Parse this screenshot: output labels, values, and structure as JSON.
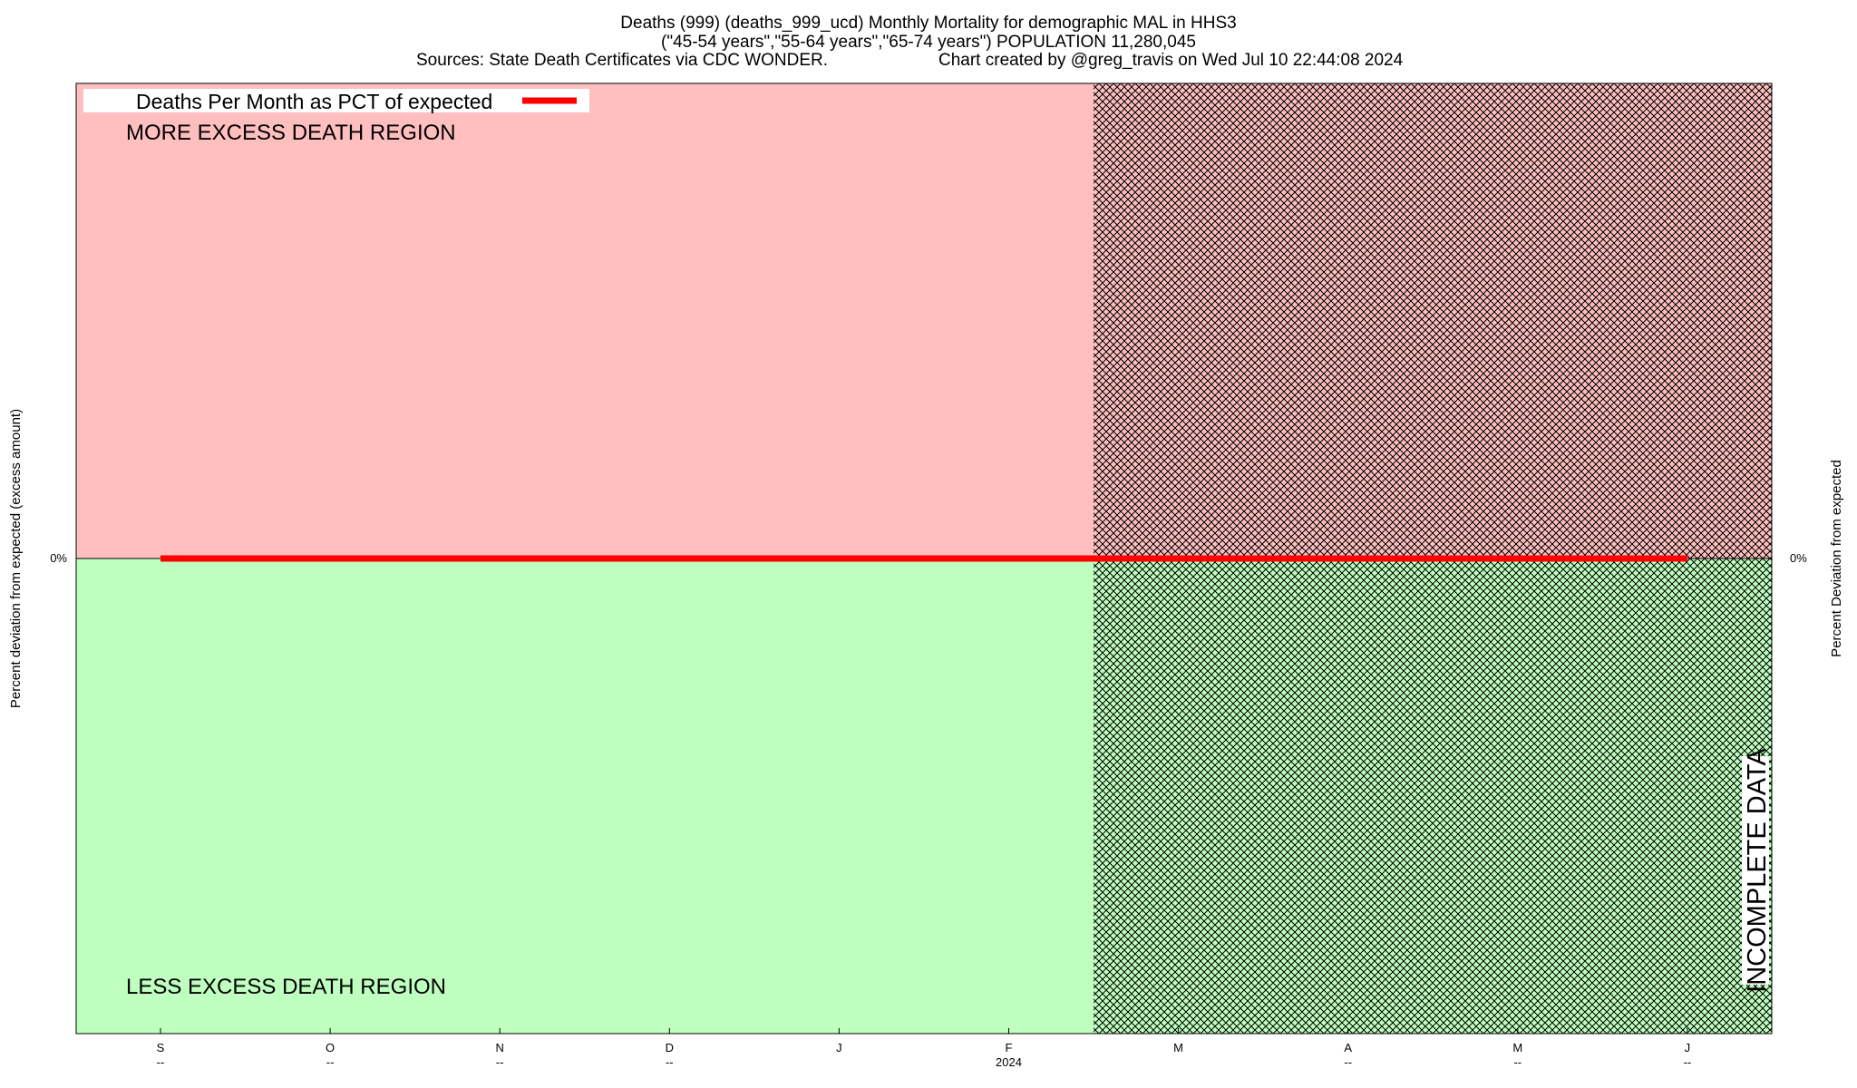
{
  "chart_data": {
    "type": "line",
    "title": "Deaths (999) (deaths_999_ucd) Monthly Mortality for demographic MAL in HHS3",
    "subtitle": "(\"45-54 years\",\"55-64 years\",\"65-74 years\") POPULATION 11,280,045",
    "sources_line": "Sources: State Death Certificates via CDC WONDER.",
    "credit_line": "Chart created by @greg_travis on Wed Jul 10 22:44:08 2024",
    "ylabel_left": "Percent deviation from expected (excess amount)",
    "ylabel_right": "Percent Deviation from expected",
    "y_tick_left": "0%",
    "y_tick_right": "0%",
    "ylim": [
      -1,
      1
    ],
    "x_ticks": [
      {
        "label": "S",
        "sub": "--"
      },
      {
        "label": "O",
        "sub": "--"
      },
      {
        "label": "N",
        "sub": "--"
      },
      {
        "label": "D",
        "sub": "--"
      },
      {
        "label": "J",
        "sub": ""
      },
      {
        "label": "F",
        "sub": "2024"
      },
      {
        "label": "M",
        "sub": ""
      },
      {
        "label": "A",
        "sub": "--"
      },
      {
        "label": "M",
        "sub": "--"
      },
      {
        "label": "J",
        "sub": "--"
      }
    ],
    "legend": {
      "label": "Deaths Per Month as PCT of expected",
      "placement": "top-left"
    },
    "regions": {
      "more_label": "MORE EXCESS DEATH REGION",
      "less_label": "LESS EXCESS DEATH REGION",
      "incomplete_label": "INCOMPLETE DATA",
      "more_color": "#ffbfbf",
      "less_color": "#bfffbf",
      "incomplete_start_month": 5.5
    },
    "series": [
      {
        "name": "Deaths Per Month as PCT of expected",
        "color": "#ff0000",
        "x": [
          0,
          1,
          2,
          3,
          4,
          5,
          6,
          7,
          8,
          9
        ],
        "values": [
          0,
          0,
          0,
          0,
          0,
          0,
          0,
          0,
          0,
          0
        ]
      }
    ]
  }
}
